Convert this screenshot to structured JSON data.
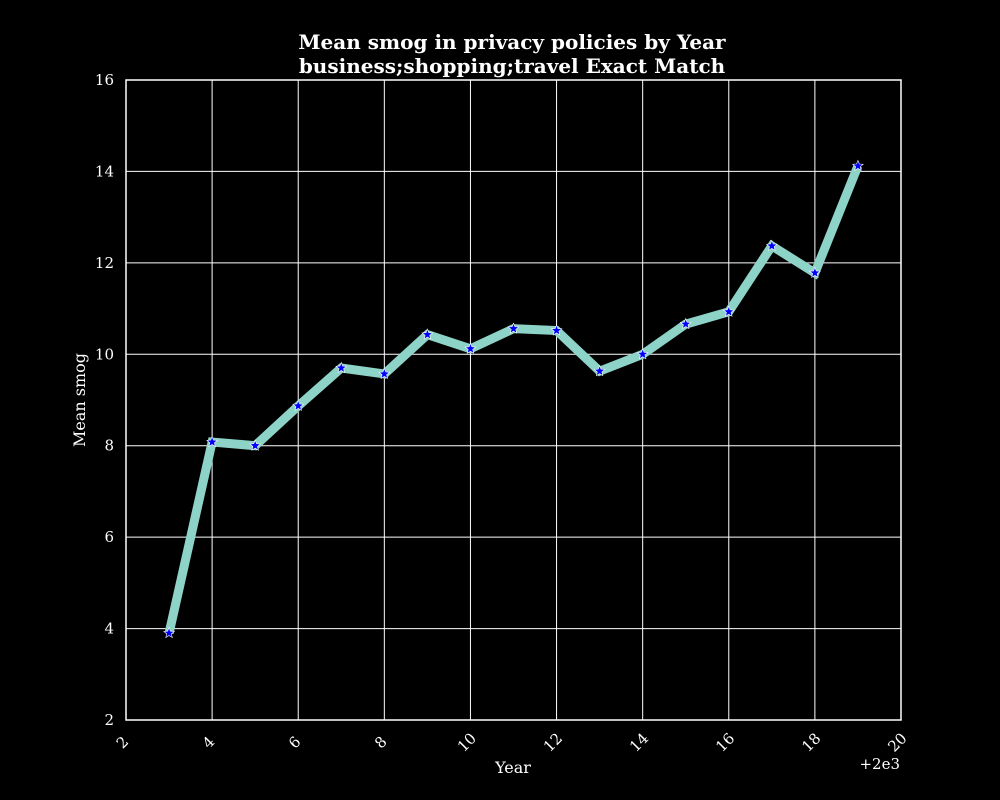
{
  "chart_data": {
    "type": "line",
    "title": "Mean smog in privacy policies by Year",
    "subtitle": "business;shopping;travel Exact Match",
    "xlabel": "Year",
    "ylabel": "Mean smog",
    "x_offset_label": "+2e3",
    "xlim": [
      2,
      20
    ],
    "ylim": [
      2,
      16
    ],
    "x_ticks": [
      2,
      4,
      6,
      8,
      10,
      12,
      14,
      16,
      18,
      20
    ],
    "y_ticks": [
      2,
      4,
      6,
      8,
      10,
      12,
      14,
      16
    ],
    "grid": true,
    "legend": "none",
    "series": [
      {
        "line_color": "#8dd3c7",
        "marker_color": "#0000ff",
        "marker": "star",
        "x": [
          3,
          4,
          5,
          6,
          7,
          8,
          9,
          10,
          11,
          12,
          13,
          14,
          15,
          16,
          17,
          18,
          19
        ],
        "y": [
          3.9,
          8.08,
          8.0,
          8.87,
          9.7,
          9.57,
          10.43,
          10.12,
          10.56,
          10.52,
          9.63,
          10.0,
          10.66,
          10.93,
          12.37,
          11.78,
          14.12
        ]
      }
    ]
  }
}
